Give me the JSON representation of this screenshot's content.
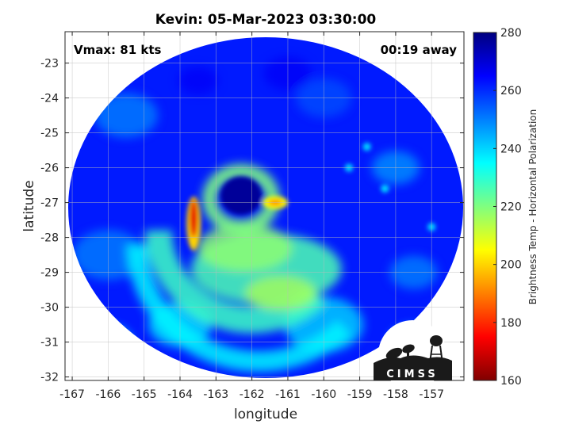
{
  "chart_data": {
    "type": "heatmap",
    "title": "Kevin: 05-Mar-2023 03:30:00",
    "xlabel": "longitude",
    "ylabel": "latitude",
    "xlim": [
      -167.2,
      -156.1
    ],
    "ylim": [
      -32.1,
      -22.1
    ],
    "xticks": [
      -167,
      -166,
      -165,
      -164,
      -163,
      -162,
      -161,
      -160,
      -159,
      -158,
      -157
    ],
    "yticks": [
      -23,
      -24,
      -25,
      -26,
      -27,
      -28,
      -29,
      -30,
      -31,
      -32
    ],
    "grid": true,
    "annotations": {
      "top_left": "Vmax: 81 kts",
      "top_right": "00:19 away"
    },
    "colorbar": {
      "label": "Brightness Temp - Horizontal Polarization",
      "range": [
        160,
        280
      ],
      "ticks": [
        160,
        180,
        200,
        220,
        240,
        260,
        280
      ],
      "colormap": "jet"
    },
    "features": {
      "eye_center": [
        -162.3,
        -26.8
      ],
      "eyewall_ring": {
        "center": [
          -162.3,
          -26.9
        ],
        "radius_deg": 1.6
      },
      "rainband_arcs": [
        {
          "center": [
            -162.0,
            -27.8
          ],
          "radius_deg": 2.6
        },
        {
          "center": [
            -161.8,
            -28.2
          ],
          "radius_deg": 3.4
        }
      ],
      "cold_spots": [
        {
          "lon": -163.6,
          "lat": -27.6,
          "temp": 172
        },
        {
          "lon": -161.4,
          "lat": -27.0,
          "temp": 192
        }
      ],
      "background_temp": 262,
      "eye_temp": 277
    },
    "logo_text": "CIMSS"
  }
}
